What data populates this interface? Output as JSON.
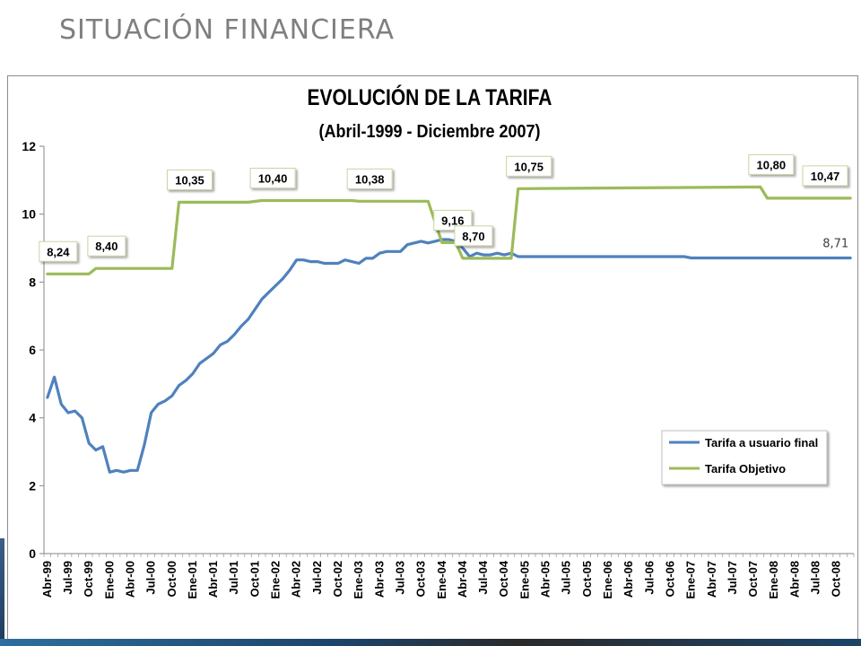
{
  "slide": {
    "title": "SITUACIÓN FINANCIERA"
  },
  "colors": {
    "blue": "#4f81bd",
    "green": "#9bbb59",
    "title": "#7f7f7f",
    "grid": "#ffffff"
  },
  "chart_data": {
    "type": "line",
    "title": "EVOLUCIÓN DE LA TARIFA",
    "subtitle": "(Abril-1999 - Diciembre 2007)",
    "xlabel": "",
    "ylabel": "",
    "ylim": [
      0,
      12
    ],
    "y_ticks": [
      "0",
      "2",
      "4",
      "6",
      "8",
      "10",
      "12"
    ],
    "x_tick_labels": [
      "Abr-99",
      "Jul-99",
      "Oct-99",
      "Ene-00",
      "Abr-00",
      "Jul-00",
      "Oct-00",
      "Ene-01",
      "Abr-01",
      "Jul-01",
      "Oct-01",
      "Ene-02",
      "Abr-02",
      "Jul-02",
      "Oct-02",
      "Ene-03",
      "Abr-03",
      "Jul-03",
      "Oct-03",
      "Ene-04",
      "Abr-04",
      "Jul-04",
      "Oct-04",
      "Ene-05",
      "Abr-05",
      "Jul-05",
      "Oct-05",
      "Ene-06",
      "Abr-06",
      "Jul-06",
      "Oct-06",
      "Ene-07",
      "Abr-07",
      "Jul-07",
      "Oct-07",
      "Ene-08",
      "Abr-08",
      "Jul-08",
      "Oct-08"
    ],
    "x_start": "1999-04",
    "x_end": "2008-12",
    "legend": {
      "position": "bottom-right"
    },
    "series": [
      {
        "name": "Tarifa a usuario final",
        "color": "#4f81bd",
        "points": [
          [
            "1999-04",
            4.6
          ],
          [
            "1999-05",
            5.2
          ],
          [
            "1999-06",
            4.4
          ],
          [
            "1999-07",
            4.15
          ],
          [
            "1999-08",
            4.2
          ],
          [
            "1999-09",
            4.0
          ],
          [
            "1999-10",
            3.25
          ],
          [
            "1999-11",
            3.05
          ],
          [
            "1999-12",
            3.15
          ],
          [
            "2000-01",
            2.4
          ],
          [
            "2000-02",
            2.45
          ],
          [
            "2000-03",
            2.4
          ],
          [
            "2000-04",
            2.45
          ],
          [
            "2000-05",
            2.45
          ],
          [
            "2000-06",
            3.2
          ],
          [
            "2000-07",
            4.15
          ],
          [
            "2000-08",
            4.4
          ],
          [
            "2000-09",
            4.5
          ],
          [
            "2000-10",
            4.65
          ],
          [
            "2000-11",
            4.95
          ],
          [
            "2000-12",
            5.1
          ],
          [
            "2001-01",
            5.3
          ],
          [
            "2001-02",
            5.6
          ],
          [
            "2001-03",
            5.75
          ],
          [
            "2001-04",
            5.9
          ],
          [
            "2001-05",
            6.15
          ],
          [
            "2001-06",
            6.25
          ],
          [
            "2001-07",
            6.45
          ],
          [
            "2001-08",
            6.7
          ],
          [
            "2001-09",
            6.9
          ],
          [
            "2001-10",
            7.2
          ],
          [
            "2001-11",
            7.5
          ],
          [
            "2001-12",
            7.7
          ],
          [
            "2002-01",
            7.9
          ],
          [
            "2002-02",
            8.1
          ],
          [
            "2002-03",
            8.35
          ],
          [
            "2002-04",
            8.65
          ],
          [
            "2002-05",
            8.65
          ],
          [
            "2002-06",
            8.6
          ],
          [
            "2002-07",
            8.6
          ],
          [
            "2002-08",
            8.55
          ],
          [
            "2002-09",
            8.55
          ],
          [
            "2002-10",
            8.55
          ],
          [
            "2002-11",
            8.65
          ],
          [
            "2002-12",
            8.6
          ],
          [
            "2003-01",
            8.55
          ],
          [
            "2003-02",
            8.7
          ],
          [
            "2003-03",
            8.7
          ],
          [
            "2003-04",
            8.85
          ],
          [
            "2003-05",
            8.9
          ],
          [
            "2003-06",
            8.9
          ],
          [
            "2003-07",
            8.9
          ],
          [
            "2003-08",
            9.1
          ],
          [
            "2003-09",
            9.15
          ],
          [
            "2003-10",
            9.2
          ],
          [
            "2003-11",
            9.15
          ],
          [
            "2003-12",
            9.2
          ],
          [
            "2004-01",
            9.25
          ],
          [
            "2004-02",
            9.25
          ],
          [
            "2004-03",
            9.2
          ],
          [
            "2004-04",
            9.0
          ],
          [
            "2004-05",
            8.75
          ],
          [
            "2004-06",
            8.85
          ],
          [
            "2004-07",
            8.8
          ],
          [
            "2004-08",
            8.8
          ],
          [
            "2004-09",
            8.85
          ],
          [
            "2004-10",
            8.8
          ],
          [
            "2004-11",
            8.85
          ],
          [
            "2004-12",
            8.75
          ],
          [
            "2005-01",
            8.75
          ],
          [
            "2006-12",
            8.75
          ],
          [
            "2007-01",
            8.71
          ],
          [
            "2008-12",
            8.71
          ]
        ]
      },
      {
        "name": "Tarifa Objetivo",
        "color": "#9bbb59",
        "points": [
          [
            "1999-04",
            8.24
          ],
          [
            "1999-10",
            8.24
          ],
          [
            "1999-11",
            8.4
          ],
          [
            "2000-10",
            8.4
          ],
          [
            "2000-11",
            10.35
          ],
          [
            "2001-09",
            10.35
          ],
          [
            "2001-11",
            10.4
          ],
          [
            "2002-12",
            10.4
          ],
          [
            "2003-01",
            10.38
          ],
          [
            "2003-11",
            10.38
          ],
          [
            "2004-01",
            9.16
          ],
          [
            "2004-03",
            9.16
          ],
          [
            "2004-04",
            8.7
          ],
          [
            "2004-11",
            8.7
          ],
          [
            "2004-12",
            10.75
          ],
          [
            "2007-11",
            10.8
          ],
          [
            "2007-12",
            10.47
          ],
          [
            "2008-12",
            10.47
          ]
        ]
      }
    ],
    "data_labels": [
      {
        "text": "8,24",
        "date": "1999-04",
        "value": 8.24,
        "series": "Tarifa Objetivo"
      },
      {
        "text": "8,40",
        "date": "1999-11",
        "value": 8.4,
        "series": "Tarifa Objetivo"
      },
      {
        "text": "10,35",
        "date": "2000-11",
        "value": 10.35,
        "series": "Tarifa Objetivo"
      },
      {
        "text": "10,40",
        "date": "2001-11",
        "value": 10.4,
        "series": "Tarifa Objetivo"
      },
      {
        "text": "10,38",
        "date": "2003-01",
        "value": 10.38,
        "series": "Tarifa Objetivo"
      },
      {
        "text": "9,16",
        "date": "2004-01",
        "value": 9.16,
        "series": "Tarifa Objetivo"
      },
      {
        "text": "8,70",
        "date": "2004-04",
        "value": 8.7,
        "series": "Tarifa Objetivo"
      },
      {
        "text": "10,75",
        "date": "2004-12",
        "value": 10.75,
        "series": "Tarifa Objetivo"
      },
      {
        "text": "10,80",
        "date": "2007-11",
        "value": 10.8,
        "series": "Tarifa Objetivo"
      },
      {
        "text": "10,47",
        "date": "2008-12",
        "value": 10.47,
        "series": "Tarifa Objetivo"
      },
      {
        "text": "8,71",
        "date": "2008-12",
        "value": 8.71,
        "series": "Tarifa a usuario final"
      }
    ]
  }
}
